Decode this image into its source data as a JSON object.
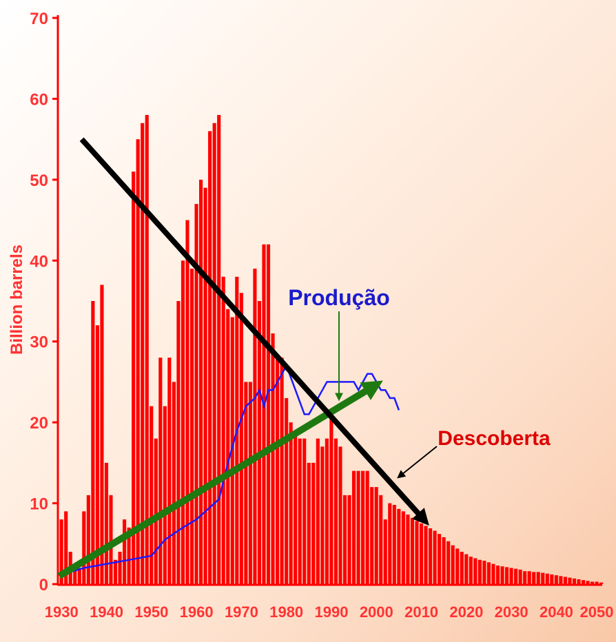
{
  "chart_data": {
    "type": "bar",
    "ylabel": "Billion barrels",
    "ylim": [
      0,
      70
    ],
    "xlim": [
      1930,
      2050
    ],
    "x_ticks": [
      "1930",
      "1940",
      "1950",
      "1960",
      "1970",
      "1980",
      "1990",
      "2000",
      "2010",
      "2020",
      "2030",
      "2040",
      "2050"
    ],
    "y_ticks": [
      "0",
      "10",
      "20",
      "30",
      "40",
      "50",
      "60",
      "70"
    ],
    "series": [
      {
        "name": "Descoberta",
        "type": "bar",
        "x": [
          1930,
          1931,
          1932,
          1933,
          1934,
          1935,
          1936,
          1937,
          1938,
          1939,
          1940,
          1941,
          1942,
          1943,
          1944,
          1945,
          1946,
          1947,
          1948,
          1949,
          1950,
          1951,
          1952,
          1953,
          1954,
          1955,
          1956,
          1957,
          1958,
          1959,
          1960,
          1961,
          1962,
          1963,
          1964,
          1965,
          1966,
          1967,
          1968,
          1969,
          1970,
          1971,
          1972,
          1973,
          1974,
          1975,
          1976,
          1977,
          1978,
          1979,
          1980,
          1981,
          1982,
          1983,
          1984,
          1985,
          1986,
          1987,
          1988,
          1989,
          1990,
          1991,
          1992,
          1993,
          1994,
          1995,
          1996,
          1997,
          1998,
          1999,
          2000,
          2001,
          2002,
          2003,
          2004,
          2005,
          2006,
          2007,
          2008,
          2009,
          2010,
          2011,
          2012,
          2013,
          2014,
          2015,
          2016,
          2017,
          2018,
          2019,
          2020,
          2021,
          2022,
          2023,
          2024,
          2025,
          2026,
          2027,
          2028,
          2029,
          2030,
          2031,
          2032,
          2033,
          2034,
          2035,
          2036,
          2037,
          2038,
          2039,
          2040,
          2041,
          2042,
          2043,
          2044,
          2045,
          2046,
          2047,
          2048,
          2049,
          2050
        ],
        "values": [
          8,
          9,
          4,
          2,
          2,
          9,
          11,
          35,
          32,
          37,
          15,
          11,
          3,
          4,
          8,
          7,
          51,
          55,
          57,
          58,
          22,
          18,
          28,
          22,
          28,
          25,
          35,
          40,
          45,
          39,
          47,
          50,
          49,
          56,
          57,
          58,
          38,
          34,
          33,
          38,
          36,
          25,
          25,
          39,
          35,
          42,
          42,
          31,
          28,
          28,
          23,
          20,
          19,
          18,
          18,
          15,
          15,
          18,
          17,
          18,
          21,
          18,
          17,
          11,
          11,
          14,
          14,
          14,
          14,
          12,
          12,
          11,
          8,
          10,
          9.8,
          9.3,
          9,
          8.6,
          8.2,
          7.8,
          7.5,
          7.2,
          6.9,
          6.6,
          6.2,
          5.8,
          5.3,
          4.8,
          4.4,
          4,
          3.7,
          3.4,
          3.2,
          3,
          2.9,
          2.7,
          2.5,
          2.3,
          2.2,
          2.1,
          2,
          1.9,
          1.8,
          1.6,
          1.6,
          1.5,
          1.5,
          1.4,
          1.3,
          1.2,
          1.1,
          1,
          0.9,
          0.8,
          0.7,
          0.6,
          0.5,
          0.4,
          0.3,
          0.3,
          0.2
        ],
        "color": "#ff0000"
      },
      {
        "name": "Produção",
        "type": "line",
        "x": [
          1930,
          1935,
          1940,
          1945,
          1950,
          1953,
          1957,
          1960,
          1962,
          1965,
          1967,
          1969,
          1971,
          1973,
          1974,
          1975,
          1976,
          1977,
          1978,
          1979,
          1980,
          1982,
          1984,
          1985,
          1986,
          1988,
          1989,
          1990,
          1992,
          1995,
          1996,
          1997,
          1998,
          1999,
          2000,
          2001,
          2002,
          2003,
          2004,
          2005
        ],
        "values": [
          1.2,
          2,
          2.5,
          3,
          3.5,
          5.5,
          7,
          8,
          9,
          10.5,
          15,
          19,
          22,
          23,
          24,
          22,
          24,
          24,
          25,
          26,
          27,
          24,
          21,
          21,
          22,
          24,
          25,
          25,
          25,
          25,
          24,
          25,
          26,
          26,
          25,
          24,
          24,
          23,
          23,
          21.5
        ],
        "color": "#0000ff"
      }
    ],
    "annotations": {
      "producao_label": "Produção",
      "descoberta_label": "Descoberta"
    },
    "colors": {
      "bars": "#ff0000",
      "production_line": "#1a1aff",
      "production_label": "#1a1acc",
      "discovery_label": "#dd0000",
      "ylabel": "#ff3333",
      "discovery_trend_arrow": "#000000",
      "production_trend_arrow": "#1e7a10",
      "pointer_arrow": "#1e7a10"
    },
    "trend_arrows": [
      {
        "name": "discovery-trend",
        "from": [
          1935,
          55
        ],
        "to": [
          2011,
          8
        ]
      },
      {
        "name": "production-trend",
        "from": [
          1930,
          1
        ],
        "to": [
          2000,
          24.5
        ]
      }
    ],
    "grid": false,
    "legend": "none"
  }
}
